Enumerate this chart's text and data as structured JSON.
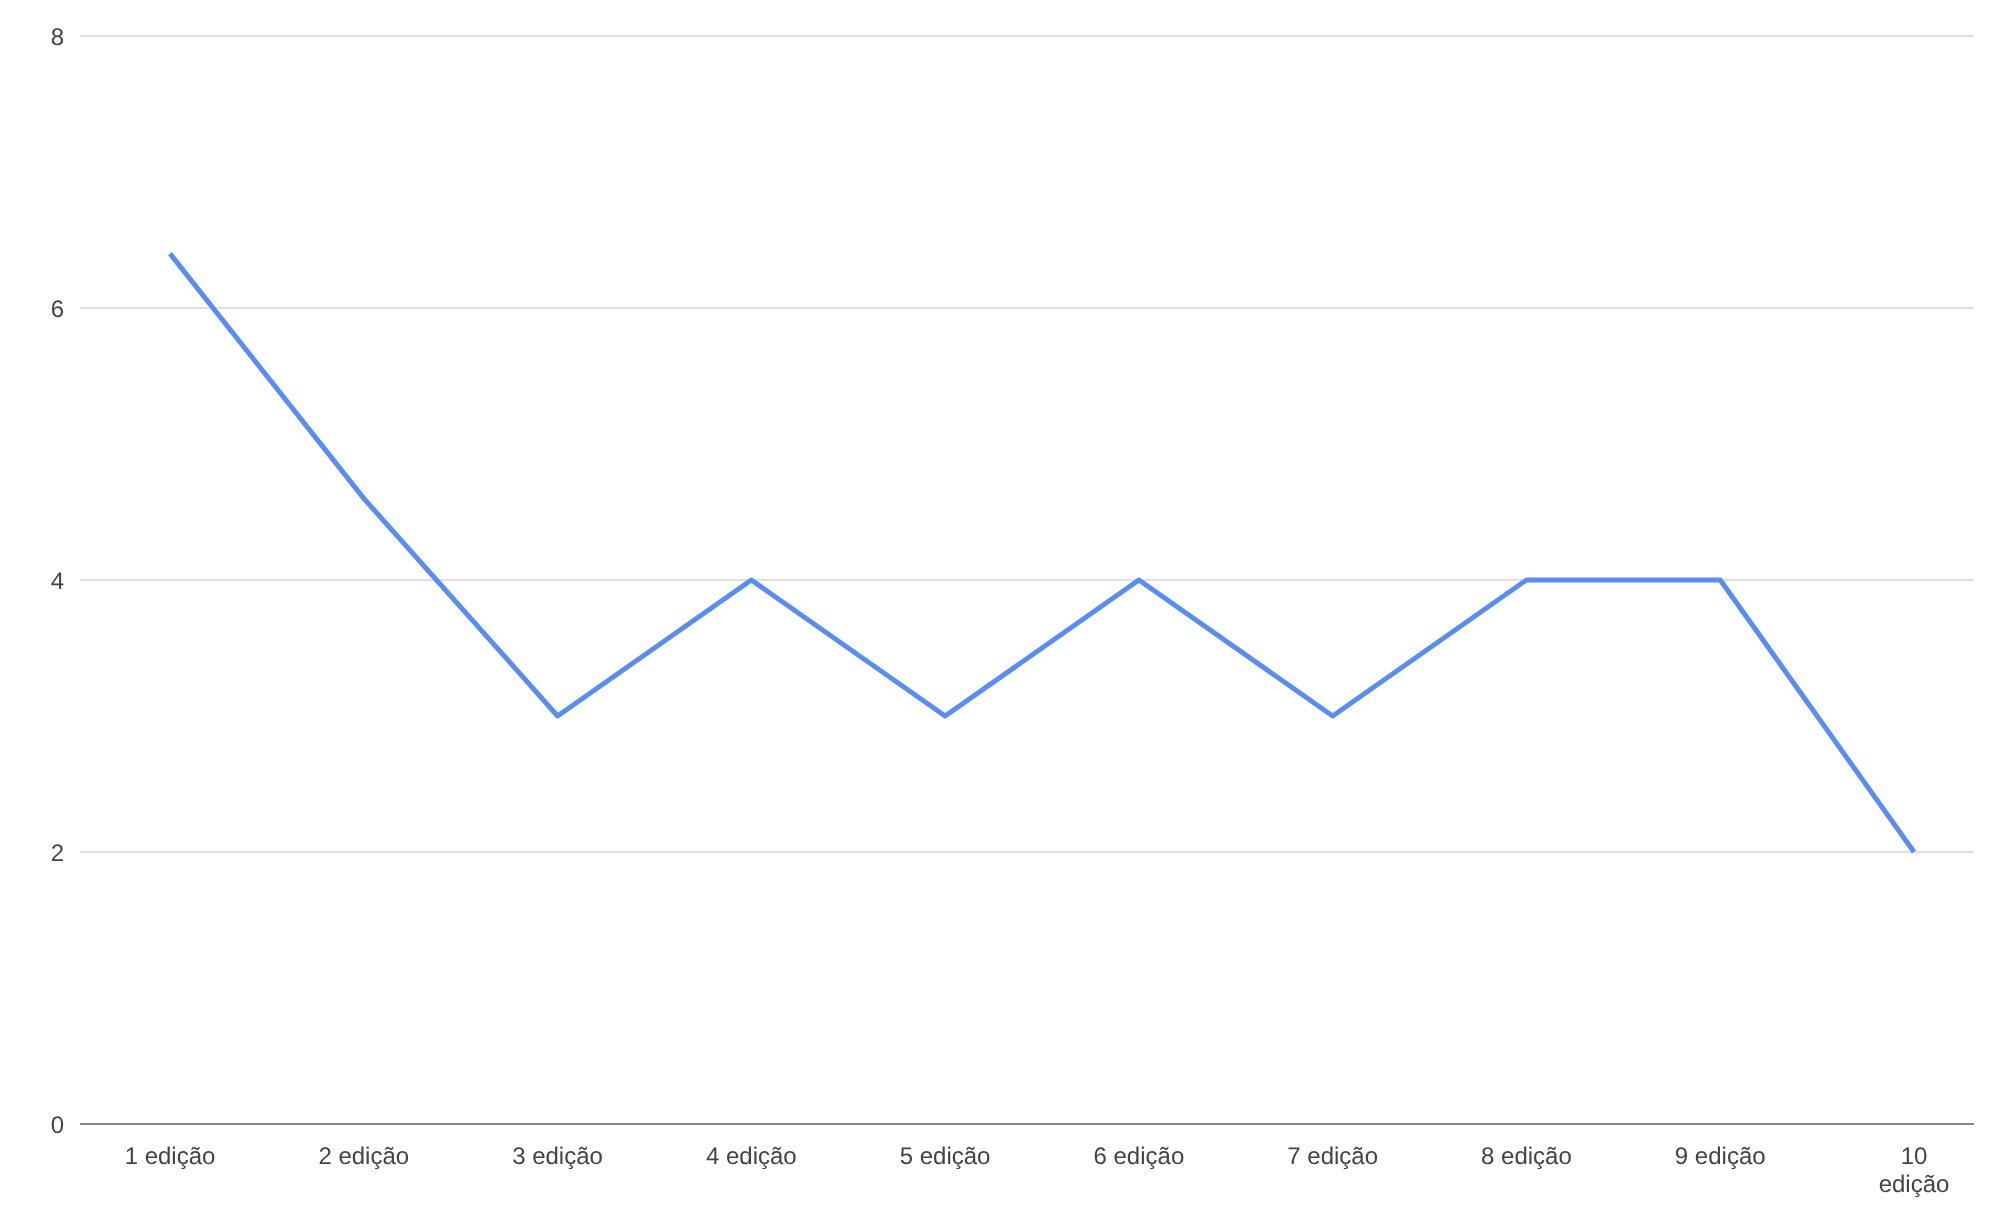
{
  "chart_data": {
    "type": "line",
    "categories": [
      "1 edição",
      "2 edição",
      "3 edição",
      "4 edição",
      "5 edição",
      "6 edição",
      "7 edição",
      "8 edição",
      "9 edição",
      "10 edição"
    ],
    "series": [
      {
        "color": "#5b8def",
        "values": [
          6.4,
          4.6,
          3,
          4,
          3,
          4,
          3,
          4,
          4,
          2
        ]
      }
    ],
    "ylim": [
      0,
      8
    ],
    "yticks": [
      0,
      2,
      4,
      6,
      8
    ],
    "grid": "y",
    "marker": "none",
    "line_style": "solid",
    "legend": false
  }
}
